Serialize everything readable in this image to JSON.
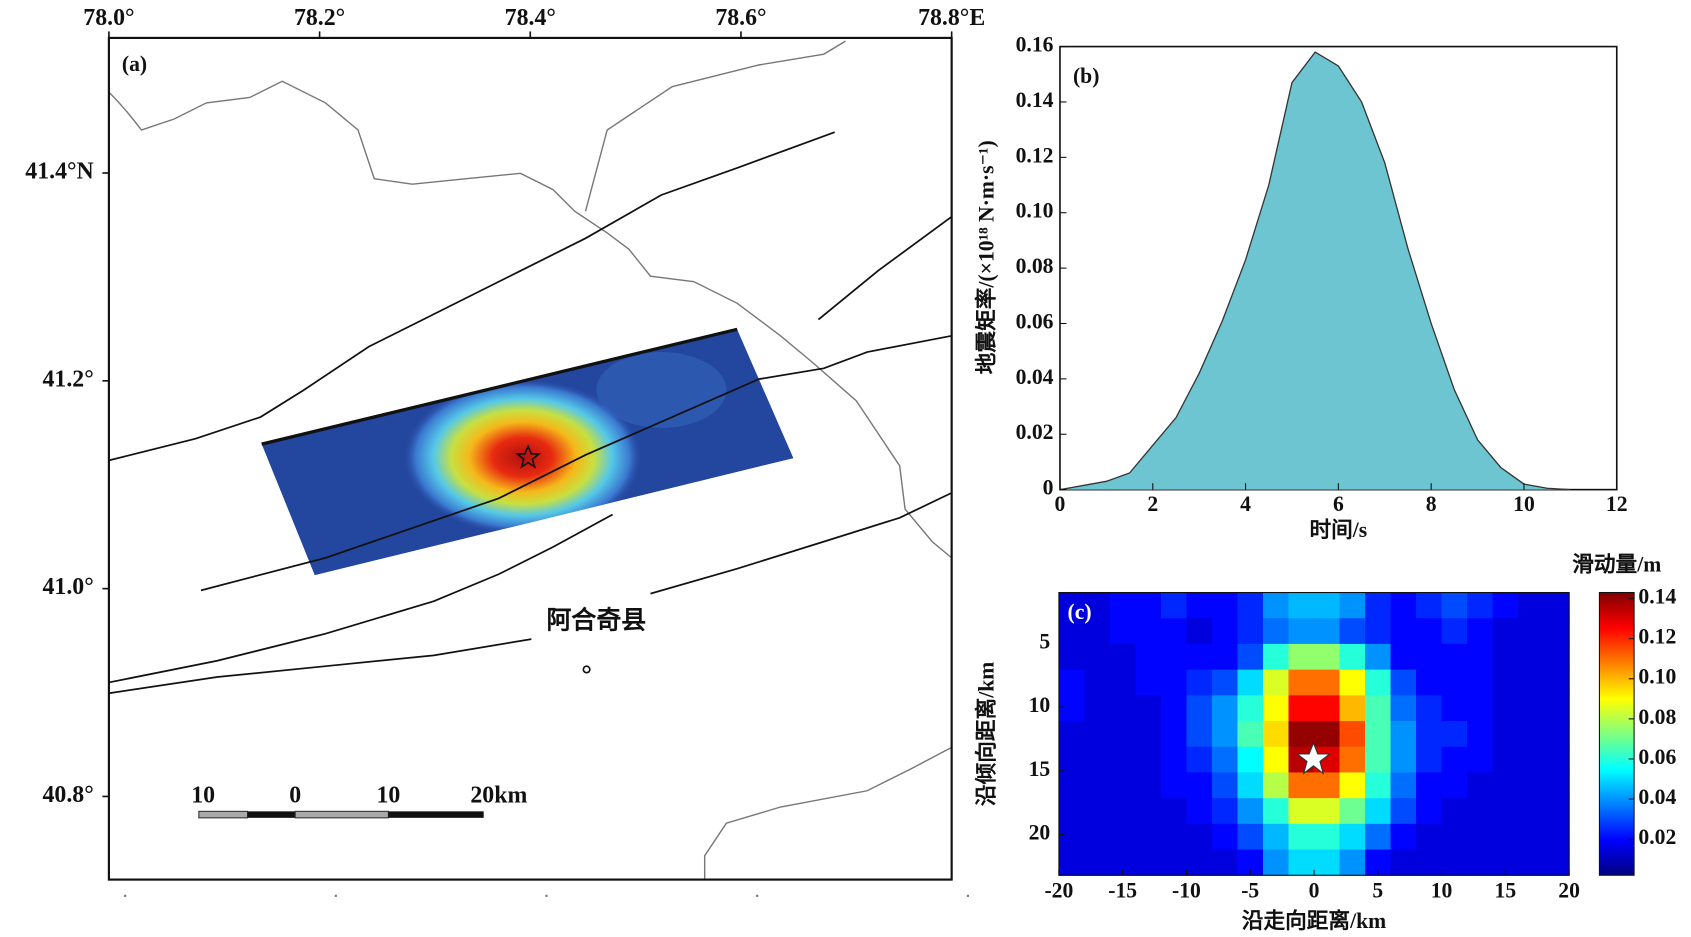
{
  "chart_data": [
    {
      "type": "map",
      "panel_label": "(a)",
      "xlim": [
        78.0,
        78.8
      ],
      "ylim": [
        40.72,
        41.53
      ],
      "xticks": [
        {
          "value": 78.0,
          "label": "78.0°"
        },
        {
          "value": 78.2,
          "label": "78.2°"
        },
        {
          "value": 78.4,
          "label": "78.4°"
        },
        {
          "value": 78.6,
          "label": "78.6°"
        },
        {
          "value": 78.8,
          "label": "78.8°E"
        }
      ],
      "yticks": [
        {
          "value": 41.4,
          "label": "41.4°N"
        },
        {
          "value": 41.2,
          "label": "41.2°"
        },
        {
          "value": 41.0,
          "label": "41.0°"
        },
        {
          "value": 40.8,
          "label": "40.8°"
        }
      ],
      "place_label": "阿合奇县",
      "scale_bar_labels": [
        "10",
        "0",
        "10",
        "20km"
      ]
    },
    {
      "type": "area",
      "panel_label": "(b)",
      "color": "#6cc5d0",
      "x": [
        0,
        1,
        1.5,
        2,
        2.5,
        3,
        3.5,
        4,
        4.5,
        5,
        5.5,
        6,
        6.5,
        7,
        7.5,
        8,
        8.5,
        9,
        9.5,
        10,
        10.5,
        11
      ],
      "values": [
        0,
        0.003,
        0.006,
        0.016,
        0.026,
        0.042,
        0.061,
        0.083,
        0.11,
        0.147,
        0.158,
        0.153,
        0.14,
        0.118,
        0.087,
        0.06,
        0.036,
        0.018,
        0.008,
        0.002,
        0.0005,
        0
      ],
      "xlim": [
        0,
        12
      ],
      "ylim": [
        0,
        0.16
      ],
      "xticks": [
        0,
        2,
        4,
        6,
        8,
        10,
        12
      ],
      "yticks": [
        0,
        0.02,
        0.04,
        0.06,
        0.08,
        {
          "value": 0.1,
          "label": "0.10"
        },
        0.12,
        0.14,
        0.16
      ],
      "xlabel": "时间/s",
      "ylabel": "地震矩率/(×10¹⁸ N·m·s⁻¹)"
    },
    {
      "type": "heatmap",
      "panel_label": "(c)",
      "xlim": [
        -20,
        20
      ],
      "ylim": [
        1,
        23.2
      ],
      "xticks": [
        -20,
        -15,
        -10,
        -5,
        0,
        5,
        10,
        15,
        20
      ],
      "yticks": [
        5,
        10,
        15,
        20
      ],
      "xlabel": "沿走向距离/km",
      "ylabel": "沿倾向距离/km",
      "values": [
        [
          0.015,
          0.015,
          0.02,
          0.02,
          0.025,
          0.02,
          0.02,
          0.025,
          0.04,
          0.045,
          0.045,
          0.04,
          0.025,
          0.02,
          0.025,
          0.03,
          0.025,
          0.02,
          0.015,
          0.015
        ],
        [
          0.015,
          0.015,
          0.02,
          0.02,
          0.02,
          0.015,
          0.02,
          0.025,
          0.035,
          0.04,
          0.04,
          0.03,
          0.025,
          0.02,
          0.02,
          0.025,
          0.02,
          0.015,
          0.015,
          0.015
        ],
        [
          0.015,
          0.015,
          0.015,
          0.02,
          0.02,
          0.02,
          0.02,
          0.03,
          0.06,
          0.075,
          0.075,
          0.06,
          0.04,
          0.02,
          0.02,
          0.02,
          0.02,
          0.015,
          0.015,
          0.015
        ],
        [
          0.02,
          0.015,
          0.015,
          0.02,
          0.02,
          0.025,
          0.03,
          0.05,
          0.085,
          0.11,
          0.11,
          0.09,
          0.06,
          0.03,
          0.02,
          0.02,
          0.02,
          0.015,
          0.015,
          0.015
        ],
        [
          0.02,
          0.015,
          0.015,
          0.015,
          0.02,
          0.03,
          0.04,
          0.06,
          0.09,
          0.125,
          0.125,
          0.1,
          0.065,
          0.035,
          0.025,
          0.02,
          0.02,
          0.015,
          0.015,
          0.015
        ],
        [
          0.015,
          0.015,
          0.015,
          0.015,
          0.02,
          0.03,
          0.04,
          0.065,
          0.095,
          0.14,
          0.14,
          0.115,
          0.065,
          0.04,
          0.025,
          0.025,
          0.02,
          0.015,
          0.015,
          0.015
        ],
        [
          0.015,
          0.015,
          0.015,
          0.015,
          0.02,
          0.025,
          0.035,
          0.055,
          0.09,
          0.135,
          0.13,
          0.11,
          0.065,
          0.04,
          0.025,
          0.02,
          0.02,
          0.015,
          0.015,
          0.015
        ],
        [
          0.015,
          0.015,
          0.015,
          0.015,
          0.02,
          0.02,
          0.03,
          0.05,
          0.08,
          0.11,
          0.11,
          0.09,
          0.06,
          0.035,
          0.02,
          0.02,
          0.015,
          0.015,
          0.015,
          0.015
        ],
        [
          0.015,
          0.015,
          0.015,
          0.015,
          0.015,
          0.02,
          0.025,
          0.04,
          0.06,
          0.085,
          0.085,
          0.07,
          0.05,
          0.03,
          0.02,
          0.015,
          0.015,
          0.015,
          0.015,
          0.015
        ],
        [
          0.015,
          0.015,
          0.015,
          0.015,
          0.015,
          0.015,
          0.02,
          0.03,
          0.045,
          0.06,
          0.06,
          0.05,
          0.035,
          0.02,
          0.015,
          0.015,
          0.015,
          0.015,
          0.015,
          0.015
        ],
        [
          0.015,
          0.015,
          0.015,
          0.015,
          0.015,
          0.015,
          0.015,
          0.02,
          0.04,
          0.05,
          0.05,
          0.04,
          0.02,
          0.015,
          0.015,
          0.015,
          0.015,
          0.015,
          0.015,
          0.015
        ]
      ],
      "colorbar": {
        "label": "滑动量/m",
        "clim": [
          0.002,
          0.143
        ],
        "ticks": [
          0.02,
          0.04,
          0.06,
          0.08,
          {
            "value": 0.1,
            "label": "0.10"
          },
          0.12,
          0.14
        ]
      }
    }
  ]
}
